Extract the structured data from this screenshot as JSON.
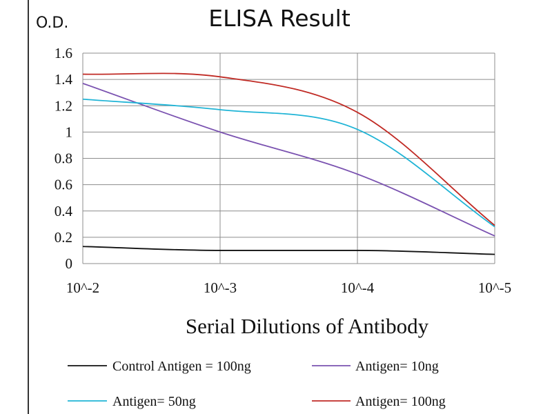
{
  "chart_data": {
    "type": "line",
    "title": "ELISA Result",
    "ylabel": "O.D.",
    "xlabel": "Serial Dilutions  of Antibody",
    "categories": [
      "10^-2",
      "10^-3",
      "10^-4",
      "10^-5"
    ],
    "y_ticks": [
      "0",
      "0.2",
      "0.4",
      "0.6",
      "0.8",
      "1",
      "1.2",
      "1.4",
      "1.6"
    ],
    "ylim": [
      0,
      1.6
    ],
    "grid": true,
    "legend_position": "bottom",
    "series": [
      {
        "name": "Control Antigen = 100ng",
        "color": "#111111",
        "values": [
          0.13,
          0.1,
          0.1,
          0.07
        ]
      },
      {
        "name": "Antigen= 10ng",
        "color": "#7a52b0",
        "values": [
          1.37,
          1.0,
          0.68,
          0.21
        ]
      },
      {
        "name": "Antigen= 50ng",
        "color": "#1fb4d6",
        "values": [
          1.25,
          1.17,
          1.02,
          0.28
        ]
      },
      {
        "name": "Antigen= 100ng",
        "color": "#c02a24",
        "values": [
          1.44,
          1.42,
          1.15,
          0.29
        ]
      }
    ]
  }
}
